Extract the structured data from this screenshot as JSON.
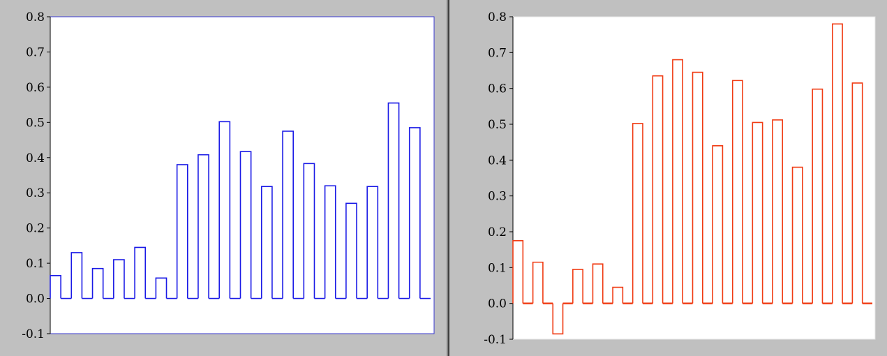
{
  "chart_data": [
    {
      "type": "bar",
      "style": "step-outline",
      "color": "#1a1ae6",
      "ylim": [
        -0.1,
        0.8
      ],
      "yticks": [
        "0.8",
        "0.7",
        "0.6",
        "0.5",
        "0.4",
        "0.3",
        "0.2",
        "0.1",
        "0.0",
        "-0.1"
      ],
      "values": [
        0.065,
        0.13,
        0.085,
        0.11,
        0.145,
        0.058,
        0.38,
        0.408,
        0.502,
        0.417,
        0.318,
        0.475,
        0.383,
        0.32,
        0.27,
        0.318,
        0.555,
        0.485
      ],
      "grid": false
    },
    {
      "type": "bar",
      "style": "step-outline",
      "color": "#f03c14",
      "ylim": [
        -0.1,
        0.8
      ],
      "yticks": [
        "0.8",
        "0.7",
        "0.6",
        "0.5",
        "0.4",
        "0.3",
        "0.2",
        "0.1",
        "0.0",
        "-0.1"
      ],
      "values": [
        0.175,
        0.115,
        -0.085,
        0.095,
        0.11,
        0.045,
        0.502,
        0.635,
        0.68,
        0.645,
        0.44,
        0.622,
        0.505,
        0.512,
        0.38,
        0.598,
        0.78,
        0.615
      ],
      "grid": false
    }
  ]
}
